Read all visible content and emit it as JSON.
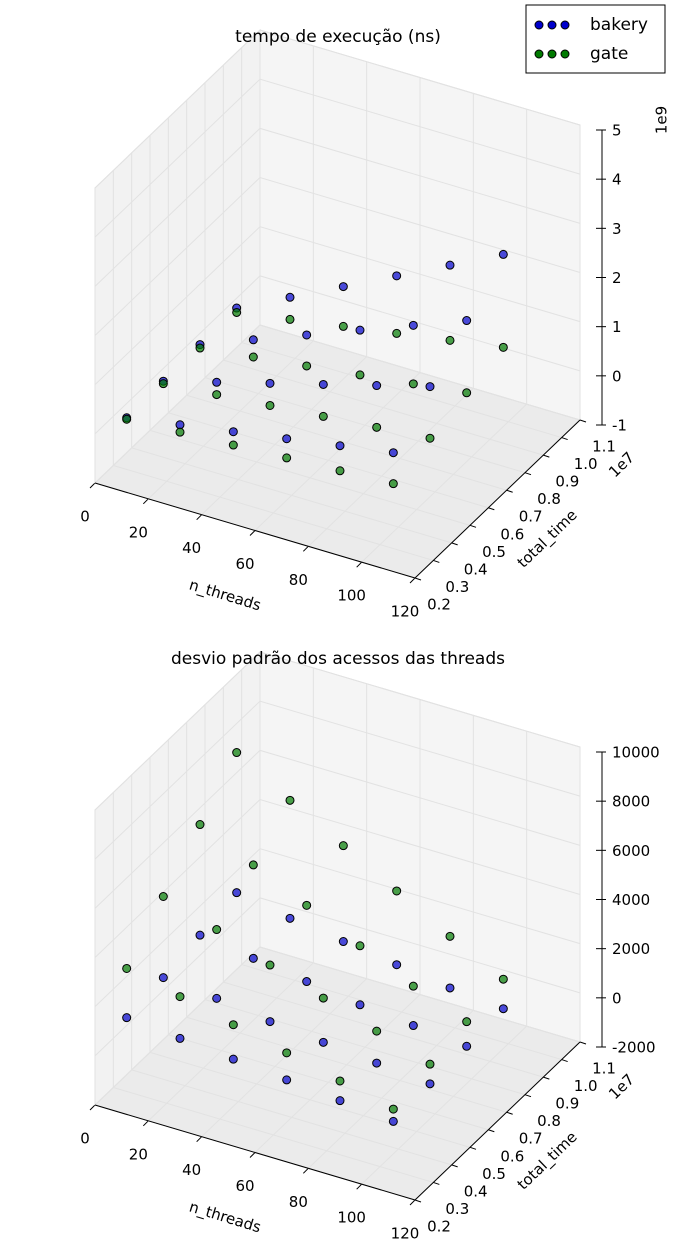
{
  "chart_data": [
    {
      "type": "scatter3d",
      "title": "tempo de execução (ns)",
      "xlabel": "n_threads",
      "ylabel": "total_time",
      "xlim": [
        0,
        120
      ],
      "ylim": [
        0.2,
        1.1
      ],
      "zlim": [
        -1,
        5
      ],
      "xticks": [
        0,
        20,
        40,
        60,
        80,
        100,
        120
      ],
      "yticks": [
        0.2,
        0.3,
        0.4,
        0.5,
        0.6,
        0.7,
        0.8,
        0.9,
        {
          "value": 1,
          "label": "1.0"
        },
        1.1
      ],
      "zticks": [
        -1,
        0,
        1,
        2,
        3,
        4,
        5
      ],
      "y_offset_label": "1e7",
      "z_offset_label": "1e9",
      "legend": "upper right",
      "series": [
        {
          "name": "bakery",
          "color": "#0000cc",
          "x": [
            5,
            25,
            45,
            65,
            85,
            105,
            5,
            25,
            45,
            65,
            85,
            105,
            5,
            25,
            45,
            65,
            85,
            105,
            5,
            25,
            45,
            65,
            85,
            105
          ],
          "y": [
            0.3,
            0.3,
            0.3,
            0.3,
            0.3,
            0.3,
            0.5,
            0.5,
            0.5,
            0.5,
            0.5,
            0.5,
            0.7,
            0.7,
            0.7,
            0.7,
            0.7,
            0.7,
            0.9,
            0.9,
            0.9,
            0.9,
            0.9,
            0.9
          ],
          "z": [
            0.05,
            0.23,
            0.41,
            0.59,
            0.77,
            0.95,
            0.08,
            0.38,
            0.68,
            0.98,
            1.28,
            1.58,
            0.11,
            0.53,
            0.95,
            1.37,
            1.79,
            2.21,
            0.14,
            0.68,
            1.22,
            1.76,
            2.3,
            2.84
          ]
        },
        {
          "name": "gate",
          "color": "#007a00",
          "x": [
            5,
            25,
            45,
            65,
            85,
            105,
            5,
            25,
            45,
            65,
            85,
            105,
            5,
            25,
            45,
            65,
            85,
            105,
            5,
            25,
            45,
            65,
            85,
            105
          ],
          "y": [
            0.3,
            0.3,
            0.3,
            0.3,
            0.3,
            0.3,
            0.5,
            0.5,
            0.5,
            0.5,
            0.5,
            0.5,
            0.7,
            0.7,
            0.7,
            0.7,
            0.7,
            0.7,
            0.9,
            0.9,
            0.9,
            0.9,
            0.9,
            0.9
          ],
          "z": [
            0.02,
            0.08,
            0.14,
            0.2,
            0.26,
            0.32,
            0.03,
            0.13,
            0.23,
            0.33,
            0.43,
            0.53,
            0.04,
            0.18,
            0.32,
            0.46,
            0.6,
            0.74,
            0.05,
            0.23,
            0.41,
            0.59,
            0.77,
            0.95
          ]
        }
      ]
    },
    {
      "type": "scatter3d",
      "title": "desvio padrão dos acessos das threads",
      "xlabel": "n_threads",
      "ylabel": "total_time",
      "xlim": [
        0,
        120
      ],
      "ylim": [
        0.2,
        1.1
      ],
      "zlim": [
        -2000,
        10000
      ],
      "xticks": [
        0,
        20,
        40,
        60,
        80,
        100,
        120
      ],
      "yticks": [
        0.2,
        0.3,
        0.4,
        0.5,
        0.6,
        0.7,
        0.8,
        0.9,
        {
          "value": 1,
          "label": "1.0"
        },
        1.1
      ],
      "zticks": [
        -2000,
        0,
        2000,
        4000,
        6000,
        8000,
        10000
      ],
      "y_offset_label": "1e7",
      "series": [
        {
          "color": "#0000cc",
          "x": [
            5,
            25,
            45,
            65,
            85,
            105,
            5,
            25,
            45,
            65,
            85,
            105,
            5,
            25,
            45,
            65,
            85,
            105,
            5,
            25,
            45,
            65,
            85,
            105
          ],
          "y": [
            0.3,
            0.3,
            0.3,
            0.3,
            0.3,
            0.3,
            0.5,
            0.5,
            0.5,
            0.5,
            0.5,
            0.5,
            0.7,
            0.7,
            0.7,
            0.7,
            0.7,
            0.7,
            0.9,
            0.9,
            0.9,
            0.9,
            0.9,
            0.9
          ],
          "z": [
            1000,
            800,
            600,
            400,
            200,
            0,
            1200,
            1000,
            700,
            500,
            300,
            100,
            1500,
            1200,
            900,
            600,
            400,
            200,
            1800,
            1400,
            1100,
            800,
            500,
            300
          ]
        },
        {
          "color": "#007a00",
          "x": [
            5,
            25,
            45,
            65,
            85,
            105,
            5,
            25,
            45,
            65,
            85,
            105,
            5,
            25,
            45,
            65,
            85,
            105,
            5,
            25,
            45,
            65,
            85,
            105
          ],
          "y": [
            0.3,
            0.3,
            0.3,
            0.3,
            0.3,
            0.3,
            0.5,
            0.5,
            0.5,
            0.5,
            0.5,
            0.5,
            0.7,
            0.7,
            0.7,
            0.7,
            0.7,
            0.7,
            0.9,
            0.9,
            0.9,
            0.9,
            0.9,
            0.9
          ],
          "z": [
            3000,
            2500,
            2000,
            1500,
            1000,
            500,
            4500,
            3800,
            3000,
            2300,
            1600,
            900,
            6000,
            5000,
            4000,
            3000,
            2000,
            1200,
            7500,
            6200,
            5000,
            3800,
            2600,
            1500
          ]
        }
      ]
    }
  ]
}
